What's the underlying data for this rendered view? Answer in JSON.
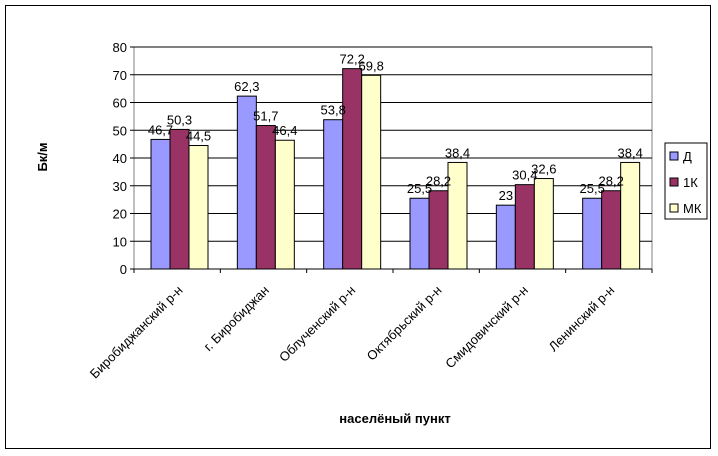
{
  "chart_data": {
    "type": "bar",
    "title": "",
    "xlabel": "населёный пункт",
    "ylabel": "Бк/м",
    "ylim": [
      0,
      80
    ],
    "yticks": [
      "0",
      "10",
      "20",
      "30",
      "40",
      "50",
      "60",
      "70",
      "80"
    ],
    "grid": true,
    "legend_position": "right",
    "categories": [
      "Биробиджанский р-н",
      "г. Биробиджан",
      "Облученский р-н",
      "Октябрьский р-н",
      "Смидовичский р-н",
      "Ленинский р-н"
    ],
    "series": [
      {
        "name": "Д",
        "color": "#9999FF",
        "values": [
          46.7,
          62.3,
          53.8,
          25.5,
          23,
          25.5
        ],
        "labels": [
          "46,7",
          "62,3",
          "53,8",
          "25,5",
          "23",
          "25,5"
        ]
      },
      {
        "name": "1К",
        "color": "#993366",
        "values": [
          50.3,
          51.7,
          72.2,
          28.2,
          30.4,
          28.2
        ],
        "labels": [
          "50,3",
          "51,7",
          "72,2",
          "28,2",
          "30,4",
          "28,2"
        ]
      },
      {
        "name": "МК",
        "color": "#FFFFCC",
        "values": [
          44.5,
          46.4,
          69.8,
          38.4,
          32.6,
          38.4
        ],
        "labels": [
          "44,5",
          "46,4",
          "69,8",
          "38,4",
          "32,6",
          "38,4"
        ]
      }
    ]
  }
}
